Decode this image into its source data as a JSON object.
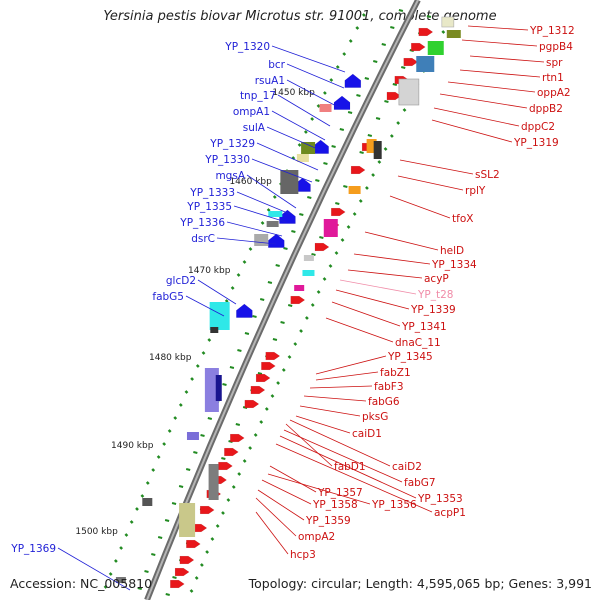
{
  "title": "Yersinia pestis biovar Microtus str. 91001, complete genome",
  "footer": {
    "accession": "Accession: NC_005810",
    "topology": "Topology: circular; Length: 4,595,065 bp; Genes: 3,991"
  },
  "colors": {
    "left_labels": "#1f1fd6",
    "right_labels": "#cc1111",
    "trna_label": "#f08ca8",
    "backbone": "#777777",
    "tick_green": "#228b22"
  },
  "scale_labels": [
    "1450 kbp",
    "1460 kbp",
    "1470 kbp",
    "1480 kbp",
    "1490 kbp",
    "1500 kbp"
  ],
  "left_genes": [
    "YP_1320",
    "bcr",
    "rsuA1",
    "tnp_17",
    "ompA1",
    "sulA",
    "YP_1329",
    "YP_1330",
    "mgsA",
    "YP_1333",
    "YP_1335",
    "YP_1336",
    "dsrC",
    "glcD2",
    "fabG5",
    "YP_1369"
  ],
  "right_genes": [
    "YP_1312",
    "pgpB4",
    "spr",
    "rtn1",
    "oppA2",
    "dppB2",
    "dppC2",
    "YP_1319",
    "sSL2",
    "rplY",
    "tfoX",
    "helD",
    "YP_1334",
    "acyP",
    "YP_t28",
    "YP_1339",
    "YP_1341",
    "dnaC_11",
    "YP_1345",
    "fabZ1",
    "fabF3",
    "fabG6",
    "pksG",
    "caiD1",
    "caiD2",
    "fabD1",
    "fabG7",
    "YP_1353",
    "acpP1",
    "YP_1357",
    "YP_1356",
    "YP_1358",
    "YP_1359",
    "ompA2",
    "hcp3"
  ]
}
